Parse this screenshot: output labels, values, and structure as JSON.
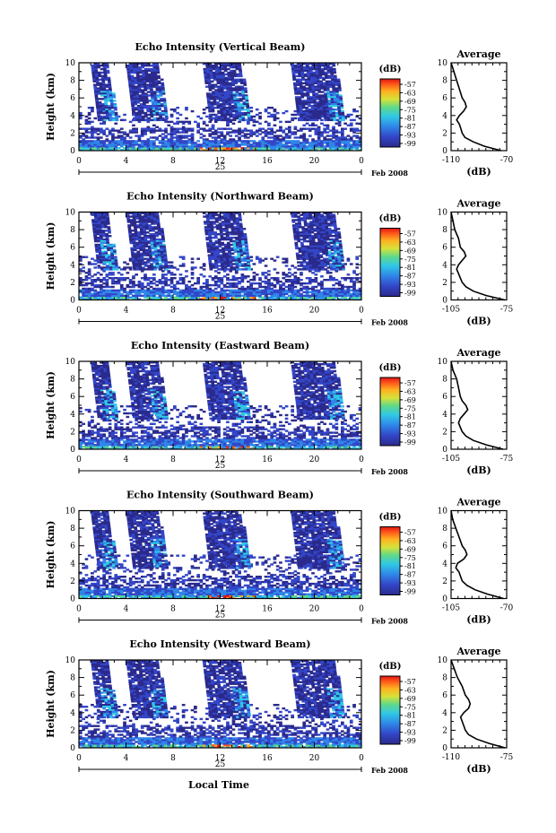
{
  "figure": {
    "xlabel": "Local Time",
    "day_label": "25",
    "month_label": "Feb 2008"
  },
  "chart_data": [
    {
      "type": "heatmap",
      "title": "Echo Intensity (Vertical Beam)",
      "ylabel": "Height (km)",
      "xlim": [
        0,
        24
      ],
      "ylim": [
        0,
        10
      ],
      "x_ticks": [
        "0",
        "4",
        "8",
        "12",
        "16",
        "20",
        "0"
      ],
      "y_ticks": [
        "0",
        "2",
        "4",
        "6",
        "8",
        "10"
      ],
      "colorbar": {
        "unit": "(dB)",
        "ticks": [
          "-57",
          "-63",
          "-69",
          "-75",
          "-81",
          "-87",
          "-93",
          "-99"
        ]
      },
      "average": {
        "title": "Average",
        "xlabel": "(dB)",
        "xlim": [
          -110,
          -70
        ],
        "x_ticks": [
          "-110",
          "-70"
        ],
        "profile": [
          [
            -74,
            0
          ],
          [
            -86,
            0.5
          ],
          [
            -94,
            1
          ],
          [
            -100,
            1.5
          ],
          [
            -102,
            2
          ],
          [
            -103,
            2.5
          ],
          [
            -104,
            3
          ],
          [
            -106,
            3.5
          ],
          [
            -104,
            4
          ],
          [
            -101,
            4.5
          ],
          [
            -99,
            5
          ],
          [
            -100,
            5.5
          ],
          [
            -102,
            6
          ],
          [
            -104,
            7
          ],
          [
            -106,
            8
          ],
          [
            -108,
            9
          ],
          [
            -110,
            10
          ]
        ]
      }
    },
    {
      "type": "heatmap",
      "title": "Echo Intensity (Northward Beam)",
      "ylabel": "Height (km)",
      "xlim": [
        0,
        24
      ],
      "ylim": [
        0,
        10
      ],
      "x_ticks": [
        "0",
        "4",
        "8",
        "12",
        "16",
        "20",
        "0"
      ],
      "y_ticks": [
        "0",
        "2",
        "4",
        "6",
        "8",
        "10"
      ],
      "colorbar": {
        "unit": "(dB)",
        "ticks": [
          "-57",
          "-63",
          "-69",
          "-75",
          "-81",
          "-87",
          "-93",
          "-99"
        ]
      },
      "average": {
        "title": "Average",
        "xlabel": "(dB)",
        "xlim": [
          -105,
          -75
        ],
        "x_ticks": [
          "-105",
          "-75"
        ],
        "profile": [
          [
            -76,
            0
          ],
          [
            -86,
            0.5
          ],
          [
            -93,
            1
          ],
          [
            -97,
            1.5
          ],
          [
            -99,
            2
          ],
          [
            -100,
            2.5
          ],
          [
            -101,
            3
          ],
          [
            -102,
            3.5
          ],
          [
            -101,
            4
          ],
          [
            -99,
            4.5
          ],
          [
            -97,
            5
          ],
          [
            -98,
            5.5
          ],
          [
            -100,
            6
          ],
          [
            -101,
            7
          ],
          [
            -103,
            8
          ],
          [
            -104,
            9
          ],
          [
            -105,
            10
          ]
        ]
      }
    },
    {
      "type": "heatmap",
      "title": "Echo Intensity (Eastward Beam)",
      "ylabel": "Height (km)",
      "xlim": [
        0,
        24
      ],
      "ylim": [
        0,
        10
      ],
      "x_ticks": [
        "0",
        "4",
        "8",
        "12",
        "16",
        "20",
        "0"
      ],
      "y_ticks": [
        "0",
        "2",
        "4",
        "6",
        "8",
        "10"
      ],
      "colorbar": {
        "unit": "(dB)",
        "ticks": [
          "-57",
          "-63",
          "-69",
          "-75",
          "-81",
          "-87",
          "-93",
          "-99"
        ]
      },
      "average": {
        "title": "Average",
        "xlabel": "(dB)",
        "xlim": [
          -105,
          -75
        ],
        "x_ticks": [
          "-105",
          "-75"
        ],
        "profile": [
          [
            -77,
            0
          ],
          [
            -86,
            0.5
          ],
          [
            -93,
            1
          ],
          [
            -97,
            1.5
          ],
          [
            -99,
            2
          ],
          [
            -100,
            2.5
          ],
          [
            -101,
            3
          ],
          [
            -100,
            3.5
          ],
          [
            -98,
            4
          ],
          [
            -96,
            4.5
          ],
          [
            -97,
            5
          ],
          [
            -99,
            5.5
          ],
          [
            -100,
            6
          ],
          [
            -101,
            7
          ],
          [
            -102,
            8
          ],
          [
            -104,
            9
          ],
          [
            -105,
            10
          ]
        ]
      }
    },
    {
      "type": "heatmap",
      "title": "Echo Intensity (Southward Beam)",
      "ylabel": "Height (km)",
      "xlim": [
        0,
        24
      ],
      "ylim": [
        0,
        10
      ],
      "x_ticks": [
        "0",
        "4",
        "8",
        "12",
        "16",
        "20",
        "0"
      ],
      "y_ticks": [
        "0",
        "2",
        "4",
        "6",
        "8",
        "10"
      ],
      "colorbar": {
        "unit": "(dB)",
        "ticks": [
          "-57",
          "-63",
          "-69",
          "-75",
          "-81",
          "-87",
          "-93",
          "-99"
        ]
      },
      "average": {
        "title": "Average",
        "xlabel": "(dB)",
        "xlim": [
          -105,
          -70
        ],
        "x_ticks": [
          "-105",
          "-70"
        ],
        "profile": [
          [
            -72,
            0
          ],
          [
            -82,
            0.5
          ],
          [
            -90,
            1
          ],
          [
            -95,
            1.5
          ],
          [
            -98,
            2
          ],
          [
            -99,
            2.5
          ],
          [
            -100,
            3
          ],
          [
            -102,
            3.5
          ],
          [
            -101,
            4
          ],
          [
            -97,
            4.5
          ],
          [
            -95,
            5
          ],
          [
            -96,
            5.5
          ],
          [
            -98,
            6
          ],
          [
            -100,
            7
          ],
          [
            -102,
            8
          ],
          [
            -104,
            9
          ],
          [
            -105,
            10
          ]
        ]
      }
    },
    {
      "type": "heatmap",
      "title": "Echo Intensity (Westward Beam)",
      "ylabel": "Height (km)",
      "xlim": [
        0,
        24
      ],
      "ylim": [
        0,
        10
      ],
      "x_ticks": [
        "0",
        "4",
        "8",
        "12",
        "16",
        "20",
        "0"
      ],
      "y_ticks": [
        "0",
        "2",
        "4",
        "6",
        "8",
        "10"
      ],
      "colorbar": {
        "unit": "(dB)",
        "ticks": [
          "-57",
          "-63",
          "-69",
          "-75",
          "-81",
          "-87",
          "-93",
          "-99"
        ]
      },
      "average": {
        "title": "Average",
        "xlabel": "(dB)",
        "xlim": [
          -110,
          -75
        ],
        "x_ticks": [
          "-110",
          "-75"
        ],
        "profile": [
          [
            -76,
            0
          ],
          [
            -86,
            0.5
          ],
          [
            -94,
            1
          ],
          [
            -99,
            1.5
          ],
          [
            -101,
            2
          ],
          [
            -102,
            2.5
          ],
          [
            -103,
            3
          ],
          [
            -104,
            3.5
          ],
          [
            -102,
            4
          ],
          [
            -99,
            4.5
          ],
          [
            -98,
            5
          ],
          [
            -99,
            5.5
          ],
          [
            -101,
            6
          ],
          [
            -103,
            7
          ],
          [
            -106,
            8
          ],
          [
            -108,
            9
          ],
          [
            -110,
            10
          ]
        ]
      }
    }
  ]
}
